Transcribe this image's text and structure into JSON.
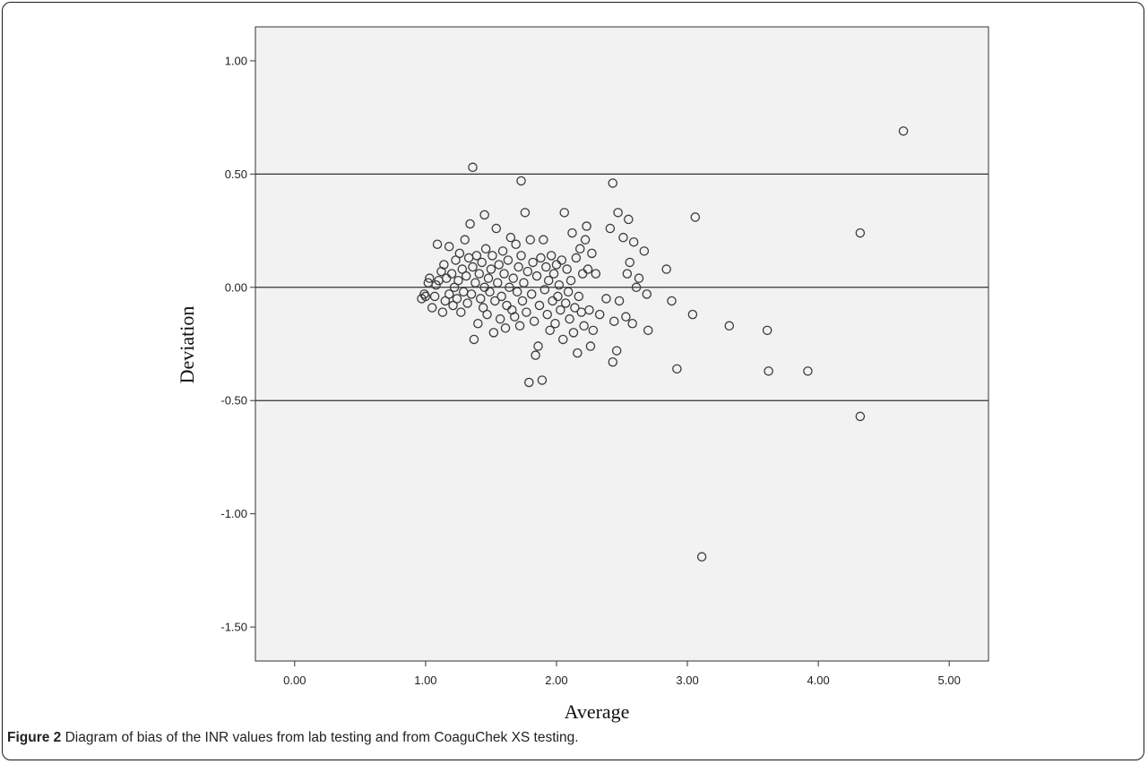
{
  "chart_data": {
    "type": "scatter",
    "xlabel": "Average",
    "ylabel": "Deviation",
    "xlim": [
      -0.3,
      5.3
    ],
    "ylim": [
      -1.65,
      1.15
    ],
    "x_ticks": [
      "0.00",
      "1.00",
      "2.00",
      "3.00",
      "4.00",
      "5.00"
    ],
    "y_ticks": [
      "1.00",
      "0.50",
      "0.00",
      "-0.50",
      "-1.00",
      "-1.50"
    ],
    "reference_lines": [
      0.5,
      0.0,
      -0.5
    ],
    "grid": false,
    "plot_background": "#f2f2f2",
    "marker": "open-circle",
    "points": [
      [
        0.97,
        -0.05
      ],
      [
        0.99,
        -0.03
      ],
      [
        1.0,
        -0.04
      ],
      [
        1.02,
        0.02
      ],
      [
        1.03,
        0.04
      ],
      [
        1.05,
        -0.09
      ],
      [
        1.07,
        -0.04
      ],
      [
        1.08,
        0.01
      ],
      [
        1.09,
        0.19
      ],
      [
        1.1,
        0.03
      ],
      [
        1.12,
        0.07
      ],
      [
        1.13,
        -0.11
      ],
      [
        1.14,
        0.1
      ],
      [
        1.15,
        -0.06
      ],
      [
        1.16,
        0.04
      ],
      [
        1.18,
        -0.03
      ],
      [
        1.18,
        0.18
      ],
      [
        1.2,
        0.06
      ],
      [
        1.21,
        -0.08
      ],
      [
        1.22,
        0.0
      ],
      [
        1.23,
        0.12
      ],
      [
        1.24,
        -0.05
      ],
      [
        1.25,
        0.03
      ],
      [
        1.26,
        0.15
      ],
      [
        1.27,
        -0.11
      ],
      [
        1.28,
        0.08
      ],
      [
        1.29,
        -0.02
      ],
      [
        1.3,
        0.21
      ],
      [
        1.31,
        0.05
      ],
      [
        1.32,
        -0.07
      ],
      [
        1.33,
        0.13
      ],
      [
        1.34,
        0.28
      ],
      [
        1.35,
        -0.03
      ],
      [
        1.36,
        0.53
      ],
      [
        1.36,
        0.09
      ],
      [
        1.37,
        -0.23
      ],
      [
        1.38,
        0.02
      ],
      [
        1.39,
        0.14
      ],
      [
        1.4,
        -0.16
      ],
      [
        1.41,
        0.06
      ],
      [
        1.42,
        -0.05
      ],
      [
        1.43,
        0.11
      ],
      [
        1.44,
        -0.09
      ],
      [
        1.45,
        0.32
      ],
      [
        1.45,
        0.0
      ],
      [
        1.46,
        0.17
      ],
      [
        1.47,
        -0.12
      ],
      [
        1.48,
        0.04
      ],
      [
        1.49,
        -0.02
      ],
      [
        1.5,
        0.08
      ],
      [
        1.51,
        0.14
      ],
      [
        1.52,
        -0.2
      ],
      [
        1.53,
        -0.06
      ],
      [
        1.54,
        0.26
      ],
      [
        1.55,
        0.02
      ],
      [
        1.56,
        0.1
      ],
      [
        1.57,
        -0.14
      ],
      [
        1.58,
        -0.04
      ],
      [
        1.59,
        0.16
      ],
      [
        1.6,
        0.06
      ],
      [
        1.61,
        -0.18
      ],
      [
        1.62,
        -0.08
      ],
      [
        1.63,
        0.12
      ],
      [
        1.64,
        0.0
      ],
      [
        1.65,
        0.22
      ],
      [
        1.66,
        -0.1
      ],
      [
        1.67,
        0.04
      ],
      [
        1.68,
        -0.13
      ],
      [
        1.69,
        0.19
      ],
      [
        1.7,
        -0.02
      ],
      [
        1.71,
        0.09
      ],
      [
        1.72,
        -0.17
      ],
      [
        1.73,
        0.47
      ],
      [
        1.73,
        0.14
      ],
      [
        1.74,
        -0.06
      ],
      [
        1.75,
        0.02
      ],
      [
        1.76,
        0.33
      ],
      [
        1.77,
        -0.11
      ],
      [
        1.78,
        0.07
      ],
      [
        1.79,
        -0.42
      ],
      [
        1.8,
        0.21
      ],
      [
        1.81,
        -0.03
      ],
      [
        1.82,
        0.11
      ],
      [
        1.83,
        -0.15
      ],
      [
        1.84,
        -0.3
      ],
      [
        1.85,
        0.05
      ],
      [
        1.86,
        -0.26
      ],
      [
        1.87,
        -0.08
      ],
      [
        1.88,
        0.13
      ],
      [
        1.89,
        -0.41
      ],
      [
        1.9,
        0.21
      ],
      [
        1.91,
        -0.01
      ],
      [
        1.92,
        0.09
      ],
      [
        1.93,
        -0.12
      ],
      [
        1.94,
        0.03
      ],
      [
        1.95,
        -0.19
      ],
      [
        1.96,
        0.14
      ],
      [
        1.97,
        -0.06
      ],
      [
        1.98,
        0.06
      ],
      [
        1.99,
        -0.16
      ],
      [
        2.0,
        0.1
      ],
      [
        2.01,
        -0.04
      ],
      [
        2.02,
        0.01
      ],
      [
        2.03,
        -0.1
      ],
      [
        2.04,
        0.12
      ],
      [
        2.05,
        -0.23
      ],
      [
        2.06,
        0.33
      ],
      [
        2.07,
        -0.07
      ],
      [
        2.08,
        0.08
      ],
      [
        2.09,
        -0.02
      ],
      [
        2.1,
        -0.14
      ],
      [
        2.11,
        0.03
      ],
      [
        2.12,
        0.24
      ],
      [
        2.13,
        -0.2
      ],
      [
        2.14,
        -0.09
      ],
      [
        2.15,
        0.13
      ],
      [
        2.16,
        -0.29
      ],
      [
        2.17,
        -0.04
      ],
      [
        2.18,
        0.17
      ],
      [
        2.19,
        -0.11
      ],
      [
        2.2,
        0.06
      ],
      [
        2.21,
        -0.17
      ],
      [
        2.22,
        0.21
      ],
      [
        2.23,
        0.27
      ],
      [
        2.24,
        0.08
      ],
      [
        2.25,
        -0.1
      ],
      [
        2.26,
        -0.26
      ],
      [
        2.27,
        0.15
      ],
      [
        2.28,
        -0.19
      ],
      [
        2.3,
        0.06
      ],
      [
        2.33,
        -0.12
      ],
      [
        2.38,
        -0.05
      ],
      [
        2.41,
        0.26
      ],
      [
        2.43,
        0.46
      ],
      [
        2.43,
        -0.33
      ],
      [
        2.44,
        -0.15
      ],
      [
        2.46,
        -0.28
      ],
      [
        2.47,
        0.33
      ],
      [
        2.48,
        -0.06
      ],
      [
        2.51,
        0.22
      ],
      [
        2.53,
        -0.13
      ],
      [
        2.54,
        0.06
      ],
      [
        2.55,
        0.3
      ],
      [
        2.56,
        0.11
      ],
      [
        2.58,
        -0.16
      ],
      [
        2.59,
        0.2
      ],
      [
        2.61,
        0.0
      ],
      [
        2.63,
        0.04
      ],
      [
        2.67,
        0.16
      ],
      [
        2.69,
        -0.03
      ],
      [
        2.7,
        -0.19
      ],
      [
        2.84,
        0.08
      ],
      [
        2.88,
        -0.06
      ],
      [
        2.92,
        -0.36
      ],
      [
        3.04,
        -0.12
      ],
      [
        3.06,
        0.31
      ],
      [
        3.11,
        -1.19
      ],
      [
        3.32,
        -0.17
      ],
      [
        3.61,
        -0.19
      ],
      [
        3.62,
        -0.37
      ],
      [
        3.92,
        -0.37
      ],
      [
        4.32,
        0.24
      ],
      [
        4.32,
        -0.57
      ],
      [
        4.65,
        0.69
      ]
    ]
  },
  "caption": {
    "label": "Figure 2",
    "text": " Diagram of bias of the INR values from lab testing and from CoaguChek XS testing."
  }
}
